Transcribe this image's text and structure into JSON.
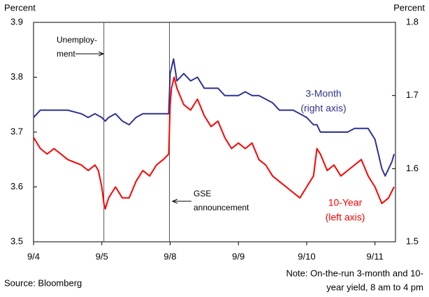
{
  "chart_data": {
    "type": "line",
    "y_label": "Percent",
    "y2_label": "Percent",
    "xlim": [
      0,
      5.3
    ],
    "xticks": [
      {
        "value": 0,
        "label": "9/4"
      },
      {
        "value": 1,
        "label": "9/5"
      },
      {
        "value": 2,
        "label": "9/8"
      },
      {
        "value": 3,
        "label": "9/9"
      },
      {
        "value": 4,
        "label": "9/10"
      },
      {
        "value": 5,
        "label": "9/11"
      }
    ],
    "ylim": [
      3.5,
      3.9
    ],
    "yticks": [
      3.5,
      3.6,
      3.7,
      3.8,
      3.9
    ],
    "y2lim": [
      1.5,
      1.8
    ],
    "y2ticks": [
      1.5,
      1.6,
      1.7,
      1.8
    ],
    "vlines": [
      1.03,
      1.99
    ],
    "annotations": [
      [
        "Unemploy-",
        "ment"
      ],
      [
        "GSE",
        "announcement"
      ]
    ],
    "series": [
      {
        "name": "3-Month",
        "axis_note": "(right axis)",
        "color": "#2e3192",
        "axis": "y2",
        "x": [
          0,
          0.1,
          0.3,
          0.4,
          0.5,
          0.7,
          0.8,
          0.9,
          1.0,
          1.05,
          1.1,
          1.2,
          1.3,
          1.4,
          1.5,
          1.6,
          1.7,
          1.8,
          1.9,
          1.98,
          2.0,
          2.05,
          2.1,
          2.2,
          2.3,
          2.4,
          2.5,
          2.6,
          2.7,
          2.8,
          3.0,
          3.1,
          3.2,
          3.3,
          3.5,
          3.6,
          3.8,
          3.9,
          4.0,
          4.1,
          4.15,
          4.2,
          4.4,
          4.6,
          4.7,
          4.9,
          5.0,
          5.05,
          5.1,
          5.15,
          5.2,
          5.25,
          5.28
        ],
        "values": [
          1.67,
          1.68,
          1.68,
          1.68,
          1.68,
          1.675,
          1.67,
          1.675,
          1.67,
          1.665,
          1.67,
          1.675,
          1.665,
          1.66,
          1.67,
          1.675,
          1.675,
          1.675,
          1.675,
          1.675,
          1.73,
          1.75,
          1.72,
          1.73,
          1.72,
          1.725,
          1.71,
          1.71,
          1.71,
          1.7,
          1.7,
          1.705,
          1.7,
          1.7,
          1.69,
          1.68,
          1.68,
          1.675,
          1.67,
          1.66,
          1.66,
          1.65,
          1.65,
          1.65,
          1.655,
          1.655,
          1.64,
          1.62,
          1.6,
          1.59,
          1.6,
          1.61,
          1.62
        ]
      },
      {
        "name": "10-Year",
        "axis_note": "(left axis)",
        "color": "#ff0000",
        "x": [
          0,
          0.05,
          0.1,
          0.2,
          0.3,
          0.4,
          0.5,
          0.6,
          0.7,
          0.8,
          0.9,
          0.95,
          1.0,
          1.03,
          1.05,
          1.1,
          1.2,
          1.3,
          1.4,
          1.5,
          1.6,
          1.7,
          1.8,
          1.9,
          1.98,
          2.0,
          2.02,
          2.06,
          2.1,
          2.2,
          2.3,
          2.4,
          2.5,
          2.6,
          2.7,
          2.8,
          2.9,
          3.0,
          3.1,
          3.2,
          3.3,
          3.4,
          3.5,
          3.6,
          3.7,
          3.8,
          3.9,
          4.0,
          4.1,
          4.15,
          4.2,
          4.3,
          4.4,
          4.5,
          4.6,
          4.7,
          4.8,
          4.9,
          5.0,
          5.1,
          5.2,
          5.28
        ],
        "values": [
          3.69,
          3.68,
          3.67,
          3.66,
          3.67,
          3.66,
          3.65,
          3.645,
          3.64,
          3.63,
          3.64,
          3.63,
          3.6,
          3.57,
          3.56,
          3.58,
          3.6,
          3.58,
          3.58,
          3.61,
          3.63,
          3.62,
          3.64,
          3.65,
          3.66,
          3.75,
          3.78,
          3.8,
          3.78,
          3.75,
          3.74,
          3.76,
          3.73,
          3.71,
          3.72,
          3.69,
          3.67,
          3.68,
          3.67,
          3.68,
          3.65,
          3.64,
          3.62,
          3.61,
          3.6,
          3.59,
          3.58,
          3.6,
          3.62,
          3.67,
          3.66,
          3.63,
          3.64,
          3.62,
          3.63,
          3.64,
          3.65,
          3.62,
          3.6,
          3.57,
          3.58,
          3.6
        ]
      }
    ],
    "source": "Source: Bloomberg",
    "note": [
      "Note: On-the-run 3-month and 10-",
      "year yield, 8 am to 4 pm"
    ]
  }
}
